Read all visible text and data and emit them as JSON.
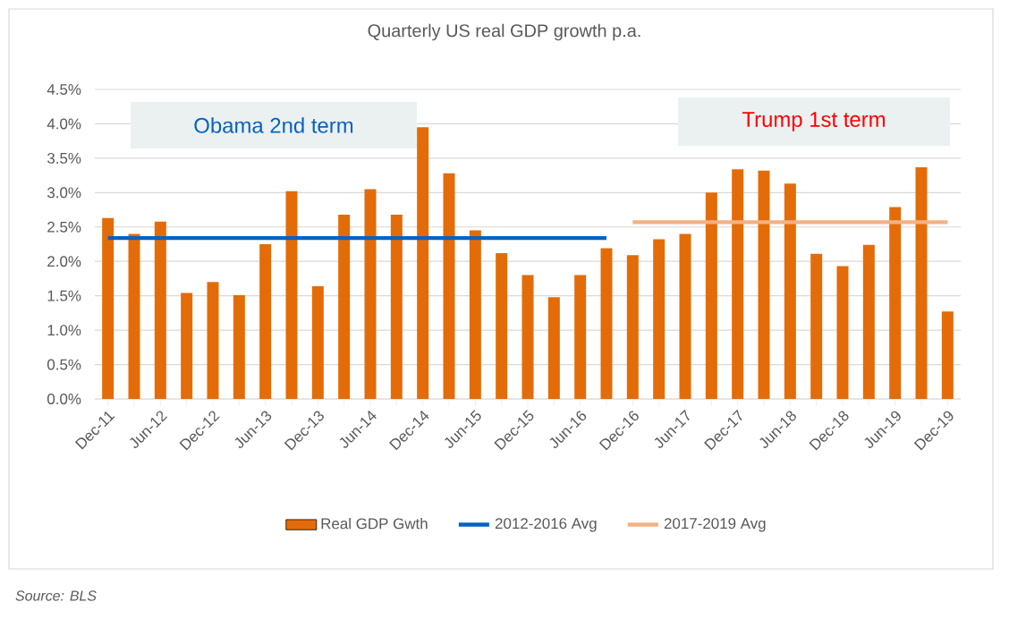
{
  "chart_data": {
    "type": "bar",
    "title": "Quarterly US real GDP growth p.a.",
    "categories": [
      "Dec-11",
      null,
      "Jun-12",
      null,
      "Dec-12",
      null,
      "Jun-13",
      null,
      "Dec-13",
      null,
      "Jun-14",
      null,
      "Dec-14",
      null,
      "Jun-15",
      null,
      "Dec-15",
      null,
      "Jun-16",
      null,
      "Dec-16",
      null,
      "Jun-17",
      null,
      "Dec-17",
      null,
      "Jun-18",
      null,
      "Dec-18",
      null,
      "Jun-19",
      null,
      "Dec-19"
    ],
    "series": [
      {
        "name": "Real GDP Gwth",
        "color": "#e36c09",
        "values": [
          2.63,
          2.4,
          2.58,
          1.54,
          1.7,
          1.51,
          2.25,
          3.02,
          1.64,
          2.68,
          3.05,
          2.68,
          3.95,
          3.28,
          2.45,
          2.12,
          1.8,
          1.48,
          1.8,
          2.19,
          2.09,
          2.32,
          2.4,
          3.0,
          3.34,
          3.32,
          3.13,
          2.11,
          1.93,
          2.24,
          2.79,
          3.37,
          1.27
        ]
      },
      {
        "name": "2012-2016 Avg",
        "type": "line",
        "color": "#0563c1",
        "values": [
          2.34,
          2.34,
          2.34,
          2.34,
          2.34,
          2.34,
          2.34,
          2.34,
          2.34,
          2.34,
          2.34,
          2.34,
          2.34,
          2.34,
          2.34,
          2.34,
          2.34,
          2.34,
          2.34,
          2.34,
          null,
          null,
          null,
          null,
          null,
          null,
          null,
          null,
          null,
          null,
          null,
          null,
          null
        ]
      },
      {
        "name": "2017-2019 Avg",
        "type": "line",
        "color": "#f4b183",
        "values": [
          null,
          null,
          null,
          null,
          null,
          null,
          null,
          null,
          null,
          null,
          null,
          null,
          null,
          null,
          null,
          null,
          null,
          null,
          null,
          null,
          2.57,
          2.57,
          2.57,
          2.57,
          2.57,
          2.57,
          2.57,
          2.57,
          2.57,
          2.57,
          2.57,
          2.57,
          2.57
        ]
      }
    ],
    "ylim": [
      0,
      4.5
    ],
    "yticks": [
      {
        "value": 0,
        "label": "0.0%"
      },
      {
        "value": 0.5,
        "label": "0.5%"
      },
      {
        "value": 1,
        "label": "1.0%"
      },
      {
        "value": 1.5,
        "label": "1.5%"
      },
      {
        "value": 2,
        "label": "2.0%"
      },
      {
        "value": 2.5,
        "label": "2.5%"
      },
      {
        "value": 3,
        "label": "3.0%"
      },
      {
        "value": 3.5,
        "label": "3.5%"
      },
      {
        "value": 4,
        "label": "4.0%"
      },
      {
        "value": 4.5,
        "label": "4.5%"
      }
    ],
    "grid": "y",
    "legend": "bottom",
    "annotations": [
      "Obama 2nd term",
      "Trump 1st term",
      "Source:  BLS"
    ]
  }
}
